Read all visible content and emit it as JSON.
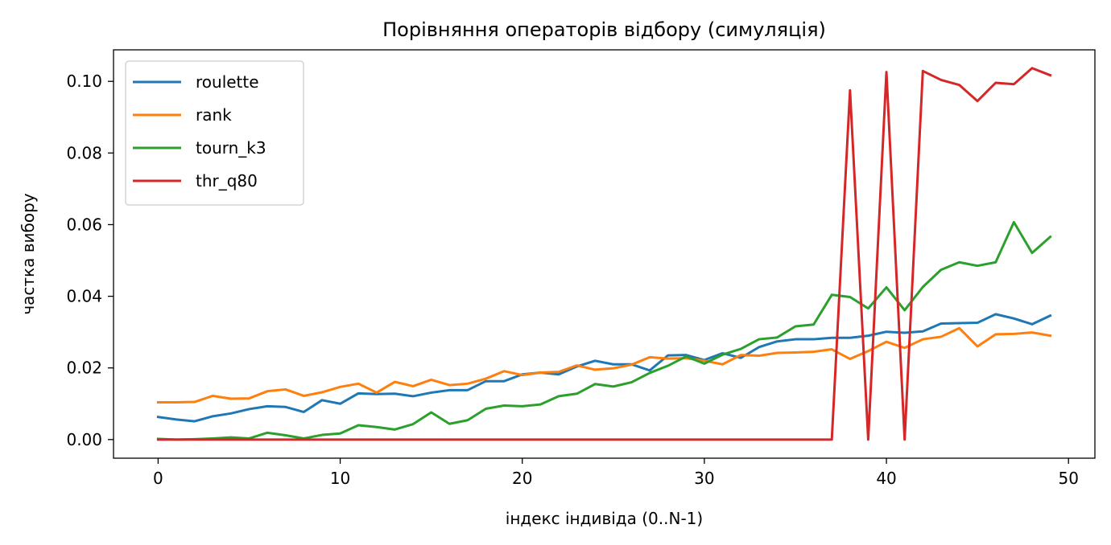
{
  "chart_data": {
    "type": "line",
    "title": "Порівняння операторів відбору (симуляція)",
    "xlabel": "індекс індивіда (0..N-1)",
    "ylabel": "частка вибору",
    "xlim": [
      -2.45,
      51.45
    ],
    "ylim": [
      -0.0052,
      0.1088
    ],
    "xticks": [
      0,
      10,
      20,
      30,
      40,
      50
    ],
    "xtick_labels": [
      "0",
      "10",
      "20",
      "30",
      "40",
      "50"
    ],
    "yticks": [
      0.0,
      0.02,
      0.04,
      0.06,
      0.08,
      0.1
    ],
    "ytick_labels": [
      "0.00",
      "0.02",
      "0.04",
      "0.06",
      "0.08",
      "0.10"
    ],
    "grid": false,
    "legend_position": "top-left",
    "x": [
      0,
      1,
      2,
      3,
      4,
      5,
      6,
      7,
      8,
      9,
      10,
      11,
      12,
      13,
      14,
      15,
      16,
      17,
      18,
      19,
      20,
      21,
      22,
      23,
      24,
      25,
      26,
      27,
      28,
      29,
      30,
      31,
      32,
      33,
      34,
      35,
      36,
      37,
      38,
      39,
      40,
      41,
      42,
      43,
      44,
      45,
      46,
      47,
      48,
      49
    ],
    "series": [
      {
        "name": "roulette",
        "color": "#1f77b4",
        "values": [
          0.0063,
          0.0056,
          0.0051,
          0.0065,
          0.0073,
          0.0085,
          0.0093,
          0.0091,
          0.0077,
          0.011,
          0.01,
          0.0129,
          0.0127,
          0.0128,
          0.0121,
          0.0131,
          0.0138,
          0.0138,
          0.0163,
          0.0163,
          0.0182,
          0.0187,
          0.0182,
          0.0204,
          0.022,
          0.021,
          0.021,
          0.0193,
          0.0235,
          0.0236,
          0.0222,
          0.0241,
          0.0228,
          0.0258,
          0.0274,
          0.028,
          0.028,
          0.0284,
          0.0284,
          0.029,
          0.0301,
          0.0298,
          0.0302,
          0.0324,
          0.0325,
          0.0326,
          0.035,
          0.0338,
          0.0322,
          0.0346
        ]
      },
      {
        "name": "rank",
        "color": "#ff7f0e",
        "values": [
          0.0104,
          0.0104,
          0.0105,
          0.0122,
          0.0114,
          0.0115,
          0.0135,
          0.014,
          0.0122,
          0.0132,
          0.0147,
          0.0156,
          0.0131,
          0.0161,
          0.0149,
          0.0167,
          0.0152,
          0.0156,
          0.017,
          0.0191,
          0.018,
          0.0187,
          0.0189,
          0.0207,
          0.0195,
          0.0199,
          0.0209,
          0.023,
          0.0226,
          0.0227,
          0.022,
          0.021,
          0.0236,
          0.0234,
          0.0242,
          0.0243,
          0.0245,
          0.0252,
          0.0225,
          0.0247,
          0.0273,
          0.0256,
          0.028,
          0.0287,
          0.0311,
          0.026,
          0.0294,
          0.0295,
          0.0299,
          0.029
        ]
      },
      {
        "name": "tourn_k3",
        "color": "#2ca02c",
        "values": [
          0.0002,
          0.0,
          0.0001,
          0.0003,
          0.0006,
          0.0003,
          0.0019,
          0.0012,
          0.0003,
          0.0013,
          0.0017,
          0.004,
          0.0035,
          0.0028,
          0.0043,
          0.0076,
          0.0044,
          0.0054,
          0.0086,
          0.0095,
          0.0093,
          0.0098,
          0.0121,
          0.0128,
          0.0155,
          0.0148,
          0.016,
          0.0186,
          0.0206,
          0.0232,
          0.0212,
          0.0237,
          0.0253,
          0.028,
          0.0285,
          0.0316,
          0.0321,
          0.0404,
          0.0398,
          0.0366,
          0.0425,
          0.0361,
          0.0426,
          0.0474,
          0.0495,
          0.0485,
          0.0495,
          0.0607,
          0.0521,
          0.0566
        ]
      },
      {
        "name": "thr_q80",
        "color": "#d62728",
        "values": [
          0.0,
          0.0,
          0.0,
          0.0,
          0.0,
          0.0,
          0.0,
          0.0,
          0.0,
          0.0,
          0.0,
          0.0,
          0.0,
          0.0,
          0.0,
          0.0,
          0.0,
          0.0,
          0.0,
          0.0,
          0.0,
          0.0,
          0.0,
          0.0,
          0.0,
          0.0,
          0.0,
          0.0,
          0.0,
          0.0,
          0.0,
          0.0,
          0.0,
          0.0,
          0.0,
          0.0,
          0.0,
          0.0,
          0.0975,
          0.0,
          0.1026,
          0.0,
          0.1029,
          0.1004,
          0.099,
          0.0945,
          0.0996,
          0.0992,
          0.1037,
          0.1017
        ]
      }
    ]
  }
}
